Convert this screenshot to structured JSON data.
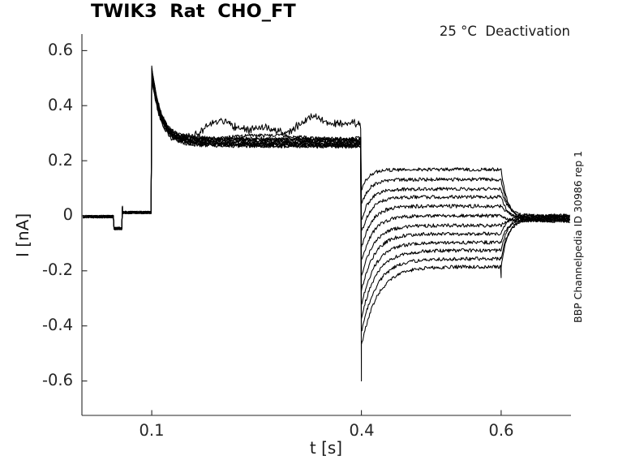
{
  "title": "TWIK3  Rat  CHO_FT",
  "condition_annotation": "25 °C  Deactivation",
  "source_annotation": "BBP Channelpedia ID 30986 rep 1",
  "axes": {
    "xlabel": "t [s]",
    "ylabel": "I [nA]",
    "xlim": [
      0,
      0.7
    ],
    "ylim": [
      -0.725,
      0.66
    ],
    "xticks": [
      0.1,
      0.4,
      0.6
    ],
    "xtick_labels": [
      "0.1",
      "0.4",
      "0.6"
    ],
    "yticks": [
      0.6,
      0.4,
      0.2,
      0,
      -0.2,
      -0.4,
      -0.6
    ],
    "ytick_labels": [
      "0.6",
      "0.4",
      "0.2",
      "0",
      "-0.2",
      "-0.4",
      "-0.6"
    ],
    "color": "#262626",
    "grid": false
  },
  "chart_data": {
    "type": "line",
    "title": "TWIK3  Rat  CHO_FT",
    "xlabel": "t [s]",
    "ylabel": "I [nA]",
    "legend": "none",
    "n_traces": 12,
    "color": "#000000",
    "time_s": {
      "start": 0.002,
      "end": 0.698,
      "step": 0.001
    },
    "protocol": {
      "baseline_current_nA": 0,
      "artifact": {
        "t_start": 0.0455,
        "t_end": 0.0575,
        "dip_nA": -0.046,
        "spike_nA": 0.034,
        "post_level_nA": 0.012
      },
      "pulse1": {
        "t_start": 0.1,
        "t_end": 0.4,
        "peak_nA": 0.544,
        "peak_min_nA": 0.5,
        "band_min_nA": 0.248,
        "band_max_nA": 0.278,
        "decay_tau_s": 0.013,
        "outlier_level_nA": 0.33,
        "outlier_max_nA": 0.36,
        "outlier2_level_nA": 0.285
      },
      "tail": {
        "t_start": 0.4,
        "t_end": 0.6,
        "spike_nA": -0.6,
        "steady_nA": [
          0.168,
          0.132,
          0.097,
          0.068,
          0.035,
          0.0,
          -0.035,
          -0.065,
          -0.097,
          -0.126,
          -0.156,
          -0.185
        ],
        "start_drop_min_nA": 0.07,
        "start_drop_max_nA": 0.28,
        "tau_min_s": 0.01,
        "tau_step_s": 0.0012
      },
      "recovery": {
        "t_start": 0.6,
        "end_band_nA": [
          -0.02,
          0.002
        ],
        "spike_nA": -0.225,
        "tau_s": 0.01
      }
    },
    "noise_nA": {
      "baseline": 0.005,
      "band": 0.0065,
      "tail": 0.0065,
      "outlier": 0.011
    }
  }
}
